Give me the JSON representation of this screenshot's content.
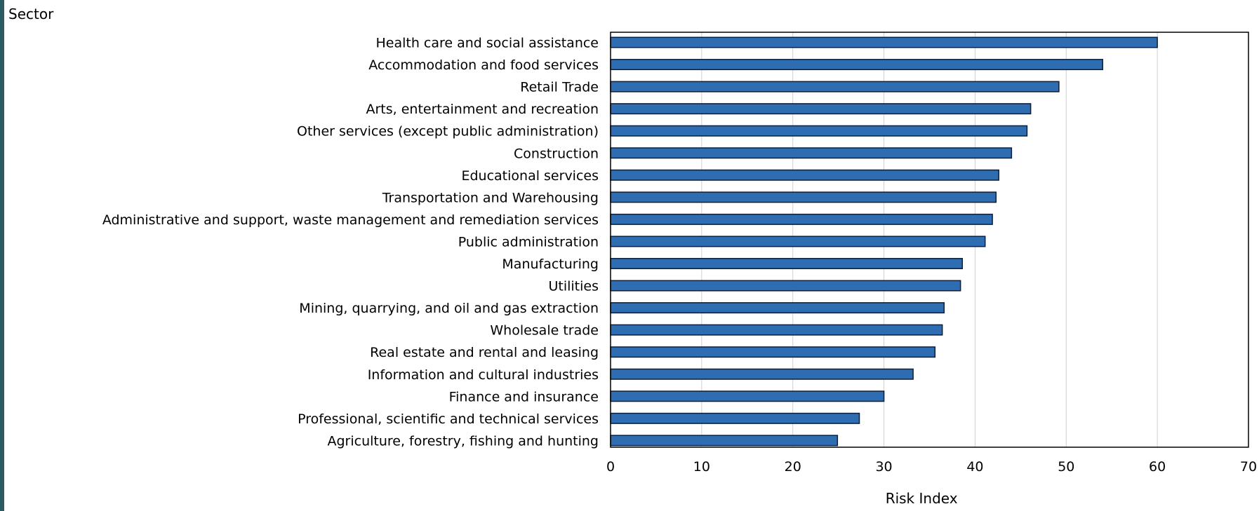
{
  "chart_data": {
    "type": "bar",
    "orientation": "horizontal",
    "ylabel": "Sector",
    "xlabel": "Risk Index",
    "xlim": [
      0,
      70
    ],
    "xticks": [
      0,
      10,
      20,
      30,
      40,
      50,
      60,
      70
    ],
    "grid": true,
    "categories": [
      "Health care and social assistance",
      "Accommodation and food services",
      "Retail Trade",
      "Arts, entertainment and recreation",
      "Other services (except public administration)",
      "Construction",
      "Educational services",
      "Transportation and Warehousing",
      "Administrative and support, waste management and remediation services",
      "Public administration",
      "Manufacturing",
      "Utilities",
      "Mining, quarrying, and oil and gas extraction",
      "Wholesale trade",
      "Real estate and rental and leasing",
      "Information and cultural industries",
      "Finance and insurance",
      "Professional, scientific and technical services",
      "Agriculture, forestry, fishing and hunting"
    ],
    "values": [
      60.0,
      54.0,
      49.2,
      46.1,
      45.7,
      44.0,
      42.6,
      42.3,
      41.9,
      41.1,
      38.6,
      38.4,
      36.6,
      36.4,
      35.6,
      33.2,
      30.0,
      27.3,
      24.9
    ],
    "bar_color": "#2f6db3",
    "bar_stroke": "#0d1f38",
    "grid_color": "#d0d0d0"
  }
}
